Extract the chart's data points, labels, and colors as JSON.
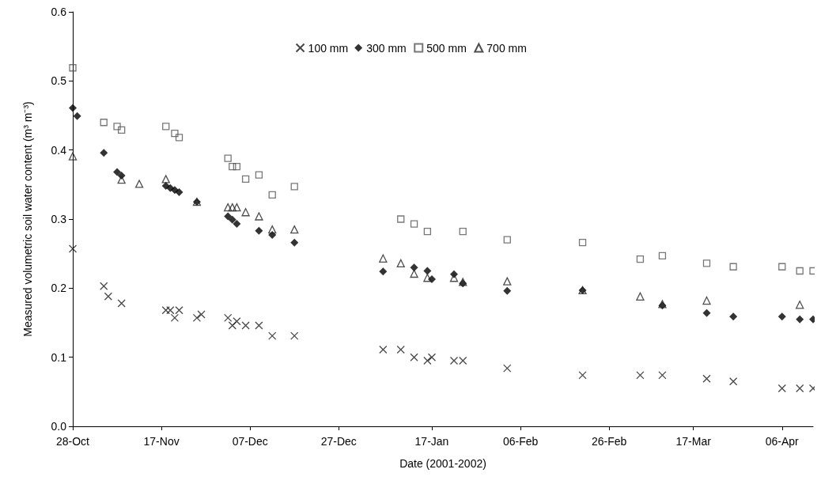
{
  "chart_data": {
    "type": "scatter",
    "xlabel": "Date (2001-2002)",
    "ylabel": "Measured volumetric soil water content (m³ m⁻³)",
    "xlim": [
      "2001-10-28",
      "2002-04-13"
    ],
    "xticks": [
      {
        "value": "2001-10-28",
        "label": "28-Oct"
      },
      {
        "value": "2001-11-17",
        "label": "17-Nov"
      },
      {
        "value": "2001-12-07",
        "label": "07-Dec"
      },
      {
        "value": "2001-12-27",
        "label": "27-Dec"
      },
      {
        "value": "2002-01-17",
        "label": "17-Jan"
      },
      {
        "value": "2002-02-06",
        "label": "06-Feb"
      },
      {
        "value": "2002-02-26",
        "label": "26-Feb"
      },
      {
        "value": "2002-03-17",
        "label": "17-Mar"
      },
      {
        "value": "2002-04-06",
        "label": "06-Apr"
      }
    ],
    "ylim": [
      0,
      0.6
    ],
    "yticks": [
      {
        "value": 0,
        "label": "0.0"
      },
      0.1,
      0.2,
      0.3,
      0.4,
      0.5,
      0.6
    ],
    "grid": false,
    "legend": "top",
    "series": [
      {
        "name": "100 mm",
        "color": "#1a1a1a",
        "marker": "cross",
        "x": [
          "2001-10-28",
          "2001-11-04",
          "2001-11-05",
          "2001-11-08",
          "2001-11-18",
          "2001-11-19",
          "2001-11-20",
          "2001-11-21",
          "2001-11-25",
          "2001-11-26",
          "2001-12-02",
          "2001-12-03",
          "2001-12-04",
          "2001-12-06",
          "2001-12-09",
          "2001-12-12",
          "2001-12-17",
          "2002-01-06",
          "2002-01-10",
          "2002-01-13",
          "2002-01-16",
          "2002-01-17",
          "2002-01-22",
          "2002-01-24",
          "2002-02-03",
          "2002-02-20",
          "2002-03-05",
          "2002-03-10",
          "2002-03-20",
          "2002-03-26",
          "2002-04-06",
          "2002-04-10",
          "2002-04-13"
        ],
        "values": [
          0.257,
          0.203,
          0.188,
          0.178,
          0.168,
          0.168,
          0.157,
          0.168,
          0.157,
          0.162,
          0.157,
          0.146,
          0.152,
          0.146,
          0.146,
          0.131,
          0.131,
          0.111,
          0.111,
          0.1,
          0.095,
          0.1,
          0.095,
          0.095,
          0.084,
          0.074,
          0.074,
          0.074,
          0.069,
          0.065,
          0.055,
          0.055,
          0.055
        ]
      },
      {
        "name": "300 mm",
        "color": "#000000",
        "marker": "diamond",
        "x": [
          "2001-10-28",
          "2001-10-29",
          "2001-11-04",
          "2001-11-07",
          "2001-11-08",
          "2001-11-18",
          "2001-11-19",
          "2001-11-20",
          "2001-11-21",
          "2001-11-25",
          "2001-12-02",
          "2001-12-03",
          "2001-12-04",
          "2001-12-09",
          "2001-12-12",
          "2001-12-17",
          "2002-01-06",
          "2002-01-13",
          "2002-01-16",
          "2002-01-17",
          "2002-01-22",
          "2002-01-24",
          "2002-02-03",
          "2002-02-20",
          "2002-03-10",
          "2002-03-20",
          "2002-03-26",
          "2002-04-06",
          "2002-04-10",
          "2002-04-13"
        ],
        "values": [
          0.461,
          0.449,
          0.396,
          0.368,
          0.363,
          0.348,
          0.345,
          0.342,
          0.339,
          0.325,
          0.304,
          0.299,
          0.293,
          0.283,
          0.277,
          0.266,
          0.224,
          0.23,
          0.225,
          0.213,
          0.22,
          0.207,
          0.196,
          0.197,
          0.175,
          0.164,
          0.159,
          0.159,
          0.155,
          0.155
        ]
      },
      {
        "name": "500 mm",
        "color": "#555555",
        "marker": "square",
        "x": [
          "2001-10-28",
          "2001-11-04",
          "2001-11-07",
          "2001-11-08",
          "2001-11-18",
          "2001-11-20",
          "2001-11-21",
          "2001-12-02",
          "2001-12-03",
          "2001-12-04",
          "2001-12-06",
          "2001-12-09",
          "2001-12-12",
          "2001-12-17",
          "2002-01-10",
          "2002-01-13",
          "2002-01-16",
          "2002-01-24",
          "2002-02-03",
          "2002-02-20",
          "2002-03-05",
          "2002-03-10",
          "2002-03-20",
          "2002-03-26",
          "2002-04-06",
          "2002-04-10",
          "2002-04-13"
        ],
        "values": [
          0.519,
          0.44,
          0.434,
          0.429,
          0.434,
          0.424,
          0.418,
          0.388,
          0.376,
          0.376,
          0.358,
          0.364,
          0.335,
          0.347,
          0.3,
          0.293,
          0.282,
          0.282,
          0.27,
          0.266,
          0.242,
          0.247,
          0.236,
          0.231,
          0.231,
          0.225,
          0.225
        ]
      },
      {
        "name": "700 mm",
        "color": "#222222",
        "marker": "triangle",
        "x": [
          "2001-10-28",
          "2001-11-08",
          "2001-11-12",
          "2001-11-18",
          "2001-11-25",
          "2001-12-02",
          "2001-12-03",
          "2001-12-04",
          "2001-12-06",
          "2001-12-09",
          "2001-12-12",
          "2001-12-17",
          "2002-01-06",
          "2002-01-10",
          "2002-01-13",
          "2002-01-16",
          "2002-01-22",
          "2002-01-24",
          "2002-02-03",
          "2002-02-20",
          "2002-03-05",
          "2002-03-10",
          "2002-03-20",
          "2002-04-10"
        ],
        "values": [
          0.391,
          0.357,
          0.351,
          0.358,
          0.325,
          0.317,
          0.317,
          0.317,
          0.31,
          0.304,
          0.285,
          0.285,
          0.243,
          0.236,
          0.221,
          0.215,
          0.215,
          0.209,
          0.21,
          0.197,
          0.188,
          0.177,
          0.182,
          0.176
        ]
      }
    ]
  }
}
